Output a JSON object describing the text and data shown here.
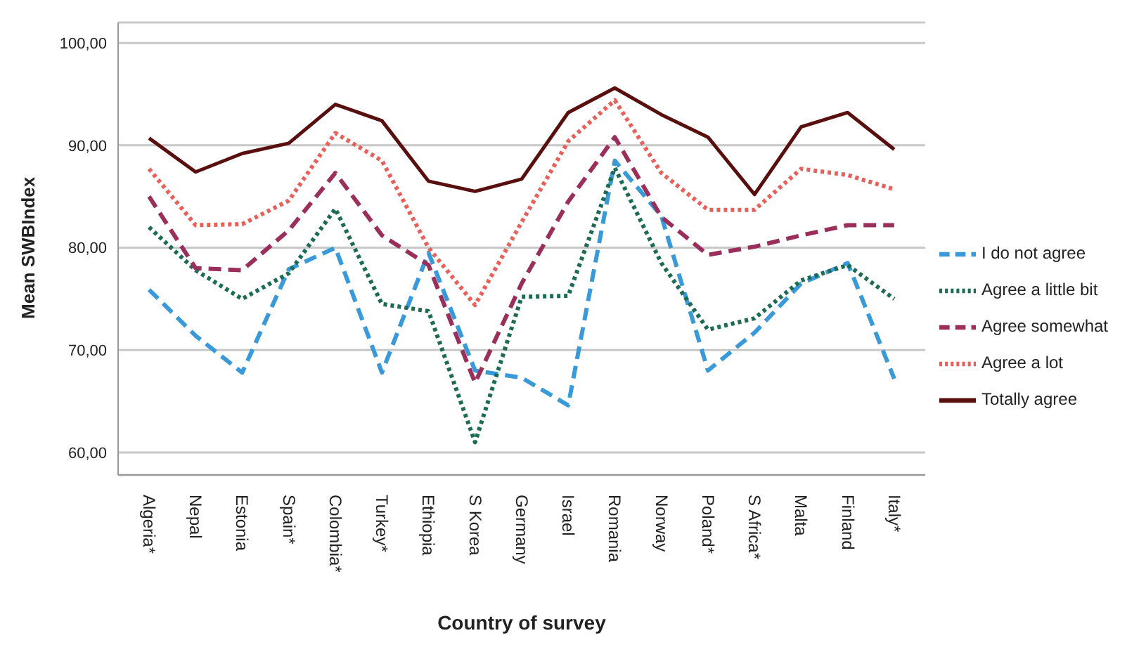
{
  "chart_data": {
    "type": "line",
    "xlabel": "Country of survey",
    "ylabel": "Mean SWBIndex",
    "categories": [
      "Algeria*",
      "Nepal",
      "Estonia",
      "Spain*",
      "Colombia*",
      "Turkey*",
      "Ethiopia",
      "S Korea",
      "Germany",
      "Israel",
      "Romania",
      "Norway",
      "Poland*",
      "S Africa*",
      "Malta",
      "Finland",
      "Italy*"
    ],
    "series": [
      {
        "name": "I do not agree",
        "color": "#3a9ad9",
        "line_style": "dashed",
        "values": [
          75.9,
          71.4,
          67.8,
          77.9,
          80.0,
          67.8,
          79.5,
          68.0,
          67.3,
          64.6,
          88.5,
          83.1,
          68.0,
          71.7,
          76.5,
          78.5,
          67.2
        ]
      },
      {
        "name": "Agree a little bit",
        "color": "#1d6b55",
        "line_style": "dotted",
        "values": [
          82.0,
          77.8,
          75.0,
          77.5,
          83.8,
          74.5,
          73.8,
          61.0,
          75.2,
          75.3,
          87.8,
          78.5,
          72.0,
          73.1,
          76.8,
          78.3,
          75.0
        ]
      },
      {
        "name": "Agree somewhat",
        "color": "#9b2f5c",
        "line_style": "dashed",
        "values": [
          85.0,
          78.0,
          77.8,
          81.7,
          87.3,
          81.2,
          78.3,
          66.8,
          76.5,
          84.5,
          90.8,
          83.0,
          79.3,
          80.1,
          81.2,
          82.2,
          82.2
        ]
      },
      {
        "name": "Agree a lot",
        "color": "#e8605a",
        "line_style": "dotted",
        "values": [
          87.7,
          82.2,
          82.3,
          84.6,
          91.2,
          88.5,
          80.0,
          74.4,
          82.5,
          90.4,
          94.4,
          87.3,
          83.7,
          83.7,
          87.7,
          87.1,
          85.7
        ]
      },
      {
        "name": "Totally agree",
        "color": "#5a0f0f",
        "line_style": "solid",
        "values": [
          90.7,
          87.4,
          89.2,
          90.2,
          94.0,
          92.4,
          86.5,
          85.5,
          86.7,
          93.2,
          95.6,
          93.0,
          90.8,
          85.2,
          91.8,
          93.2,
          89.6
        ]
      }
    ],
    "ylim": [
      57.8,
      102
    ],
    "yticks": [
      {
        "value": 60,
        "label": "60,00"
      },
      {
        "value": 70,
        "label": "70,00"
      },
      {
        "value": 80,
        "label": "80,00"
      },
      {
        "value": 90,
        "label": "90,00"
      },
      {
        "value": 100,
        "label": "100,00"
      }
    ],
    "grid": "y",
    "legend": "right",
    "marker": "none"
  }
}
